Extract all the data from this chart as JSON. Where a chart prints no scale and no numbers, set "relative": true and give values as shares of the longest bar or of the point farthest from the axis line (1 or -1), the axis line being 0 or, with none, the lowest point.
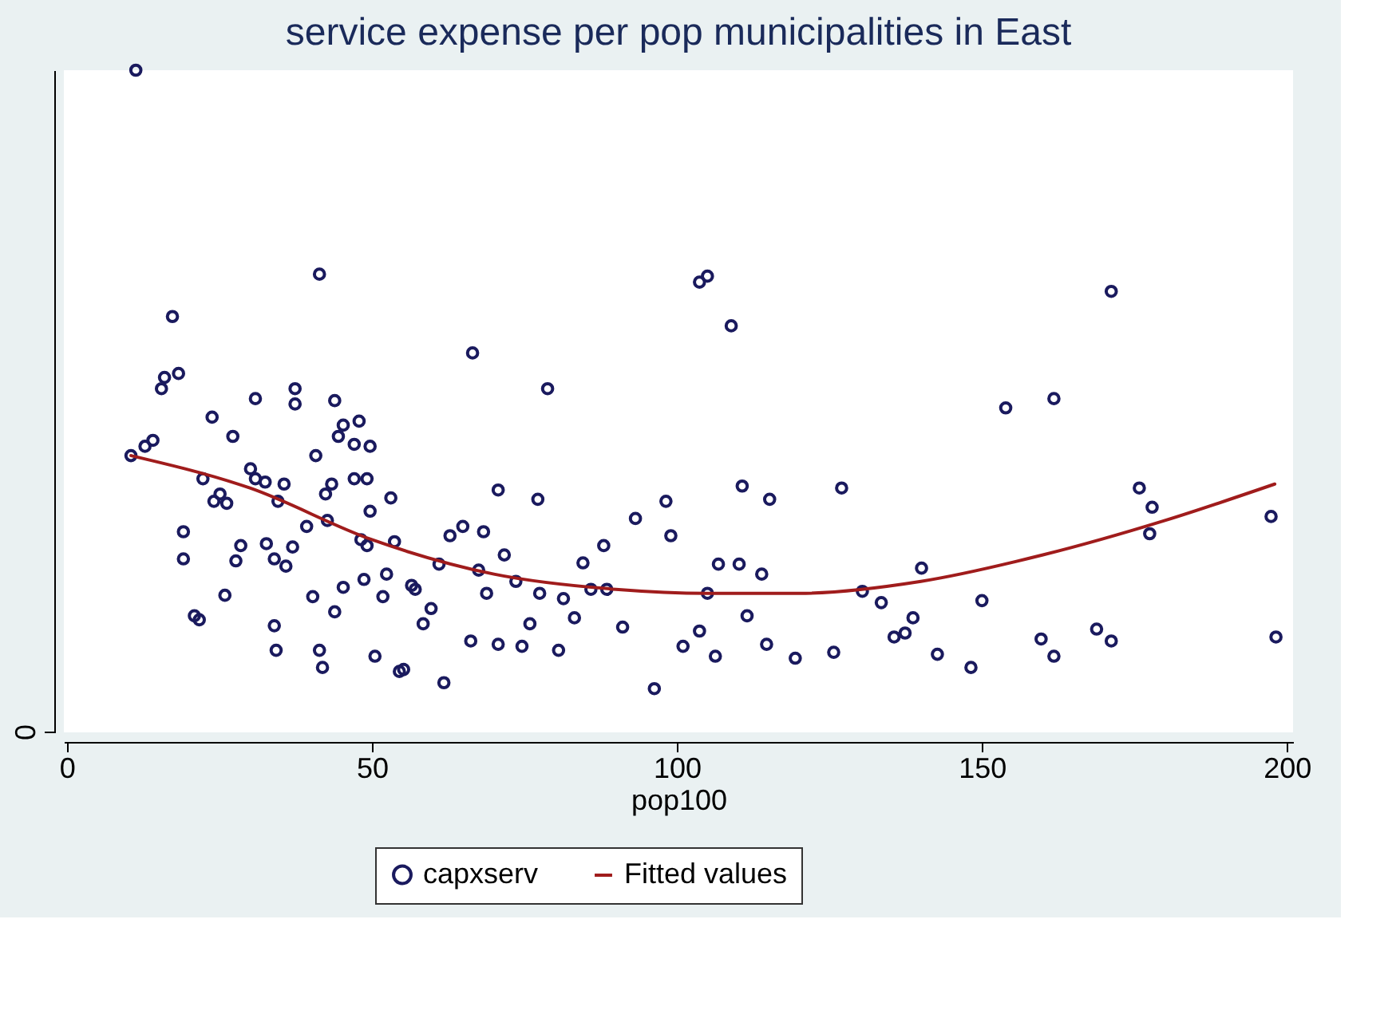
{
  "chart_data": {
    "type": "scatter",
    "title": "service expense per pop municipalities in East",
    "xlabel": "pop100",
    "relative": true,
    "xlim": [
      -0.5,
      201
    ],
    "xticks": [
      0,
      50,
      100,
      150,
      200
    ],
    "annotations": [
      "0"
    ],
    "grid": false,
    "legend": "bottom",
    "series": [
      {
        "name": "capxserv",
        "marker": "circle",
        "color": "#1a1a5e",
        "x": [
          11.3,
          10.5,
          12.8,
          14.1,
          17.3,
          16.0,
          15.5,
          18.3,
          19.1,
          19.1,
          20.9,
          21.7,
          23.8,
          25.1,
          24.1,
          26.2,
          27.2,
          22.3,
          28.5,
          27.7,
          25.9,
          30.9,
          32.5,
          30.1,
          30.9,
          32.7,
          34.0,
          34.0,
          34.3,
          34.6,
          35.6,
          35.9,
          37.0,
          37.4,
          37.4,
          39.3,
          40.3,
          40.8,
          41.4,
          41.4,
          41.9,
          42.4,
          42.7,
          43.4,
          43.9,
          43.9,
          44.5,
          45.3,
          45.3,
          47.1,
          47.9,
          47.1,
          48.2,
          48.7,
          49.2,
          49.7,
          49.2,
          50.5,
          49.7,
          51.8,
          53.1,
          54.5,
          55.2,
          53.7,
          52.4,
          56.5,
          57.1,
          58.4,
          59.7,
          61.8,
          62.8,
          61.0,
          64.9,
          66.2,
          66.5,
          67.5,
          68.3,
          68.8,
          70.7,
          70.7,
          71.7,
          73.6,
          74.6,
          75.9,
          77.5,
          77.2,
          78.8,
          80.6,
          81.4,
          83.2,
          84.6,
          85.9,
          88.0,
          88.5,
          91.1,
          93.2,
          96.3,
          98.2,
          99.0,
          101.0,
          103.7,
          103.7,
          105.0,
          105.0,
          106.3,
          106.8,
          108.9,
          110.2,
          110.7,
          111.5,
          113.9,
          114.7,
          115.2,
          119.4,
          125.7,
          127.0,
          130.4,
          133.5,
          135.6,
          137.4,
          138.7,
          140.1,
          142.7,
          148.2,
          150.0,
          153.9,
          159.7,
          161.8,
          161.8,
          168.8,
          171.2,
          171.2,
          177.5,
          175.8,
          177.9,
          197.4,
          198.2
        ],
        "values": [
          1.0,
          0.418,
          0.432,
          0.441,
          0.628,
          0.536,
          0.519,
          0.542,
          0.303,
          0.262,
          0.176,
          0.17,
          0.476,
          0.36,
          0.349,
          0.346,
          0.447,
          0.383,
          0.282,
          0.259,
          0.207,
          0.383,
          0.378,
          0.398,
          0.504,
          0.285,
          0.262,
          0.161,
          0.124,
          0.349,
          0.375,
          0.251,
          0.28,
          0.519,
          0.496,
          0.311,
          0.205,
          0.418,
          0.692,
          0.124,
          0.098,
          0.36,
          0.32,
          0.375,
          0.501,
          0.182,
          0.447,
          0.219,
          0.464,
          0.383,
          0.47,
          0.435,
          0.291,
          0.231,
          0.383,
          0.334,
          0.282,
          0.115,
          0.432,
          0.205,
          0.354,
          0.092,
          0.095,
          0.288,
          0.239,
          0.222,
          0.216,
          0.164,
          0.187,
          0.075,
          0.297,
          0.254,
          0.311,
          0.138,
          0.573,
          0.245,
          0.303,
          0.21,
          0.366,
          0.133,
          0.268,
          0.228,
          0.13,
          0.164,
          0.21,
          0.352,
          0.519,
          0.124,
          0.202,
          0.173,
          0.256,
          0.216,
          0.282,
          0.216,
          0.159,
          0.323,
          0.066,
          0.349,
          0.297,
          0.13,
          0.153,
          0.68,
          0.689,
          0.21,
          0.115,
          0.254,
          0.614,
          0.254,
          0.372,
          0.176,
          0.239,
          0.133,
          0.352,
          0.112,
          0.121,
          0.369,
          0.213,
          0.196,
          0.144,
          0.15,
          0.173,
          0.248,
          0.118,
          0.098,
          0.199,
          0.49,
          0.141,
          0.115,
          0.504,
          0.156,
          0.138,
          0.666,
          0.3,
          0.369,
          0.34,
          0.326,
          0.144
        ]
      },
      {
        "name": "Fitted values",
        "type": "line",
        "color": "#a01c1c",
        "line_style": "solid",
        "x": [
          10.5,
          30,
          50,
          70,
          90,
          105,
          120,
          140,
          160,
          180,
          198
        ],
        "values": [
          0.418,
          0.369,
          0.291,
          0.239,
          0.216,
          0.21,
          0.21,
          0.228,
          0.268,
          0.32,
          0.375
        ]
      }
    ]
  }
}
